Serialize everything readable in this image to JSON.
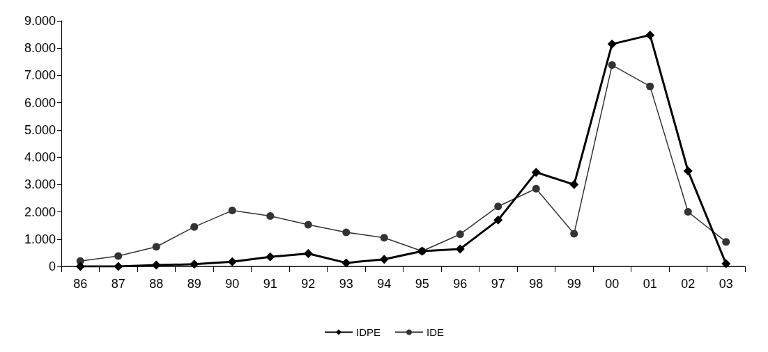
{
  "chart_data": {
    "type": "line",
    "categories": [
      "86",
      "87",
      "88",
      "89",
      "90",
      "91",
      "92",
      "93",
      "94",
      "95",
      "96",
      "97",
      "98",
      "99",
      "00",
      "01",
      "02",
      "03"
    ],
    "series": [
      {
        "name": "IDPE",
        "color": "#000000",
        "marker": "diamond",
        "values": [
          0,
          0,
          50,
          80,
          170,
          350,
          470,
          130,
          260,
          560,
          640,
          1700,
          3450,
          3000,
          8150,
          8480,
          3500,
          100
        ]
      },
      {
        "name": "IDE",
        "color": "#333333",
        "marker": "circle",
        "values": [
          200,
          380,
          720,
          1450,
          2050,
          1850,
          1530,
          1250,
          1050,
          560,
          1180,
          2200,
          2850,
          1200,
          7380,
          6600,
          2000,
          900
        ]
      }
    ],
    "ylim": [
      0,
      9000
    ],
    "yticks": [
      {
        "value": 0,
        "label": "0"
      },
      {
        "value": 1000,
        "label": "1.000"
      },
      {
        "value": 2000,
        "label": "2.000"
      },
      {
        "value": 3000,
        "label": "3.000"
      },
      {
        "value": 4000,
        "label": "4.000"
      },
      {
        "value": 5000,
        "label": "5.000"
      },
      {
        "value": 6000,
        "label": "6.000"
      },
      {
        "value": 7000,
        "label": "7.000"
      },
      {
        "value": 8000,
        "label": "8.000"
      },
      {
        "value": 9000,
        "label": "9.000"
      }
    ],
    "grid": false,
    "legend": "bottom",
    "line_style": "solid"
  }
}
